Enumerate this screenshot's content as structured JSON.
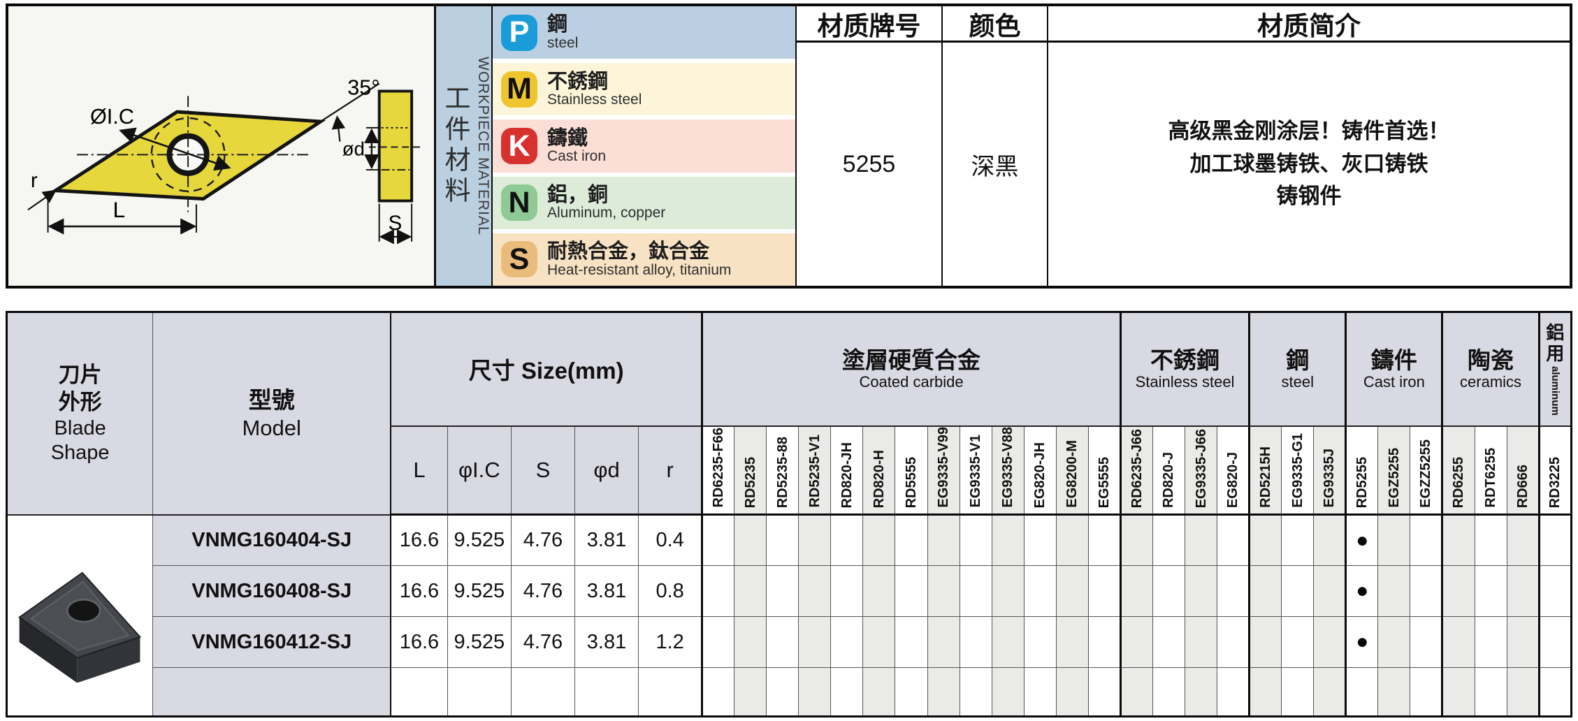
{
  "top": {
    "drawing": {
      "ic_label": "ØI.C",
      "angle_label": "35°",
      "radius_label": "r",
      "length_label": "L",
      "thickness_label": "S",
      "hole_label": "ød",
      "insert_color": "#e6d73c"
    },
    "workpiece": {
      "title_zh": "工件材料",
      "title_en": "WORKPIECE MATERIAL",
      "rows": [
        {
          "code": "P",
          "zh": "鋼",
          "en": "steel",
          "badge": "#1a9cd8",
          "letter": "#ffffff",
          "bg": "#bad0e2"
        },
        {
          "code": "M",
          "zh": "不銹鋼",
          "en": "Stainless steel",
          "badge": "#eec52e",
          "letter": "#111111",
          "bg": "#fcf5da"
        },
        {
          "code": "K",
          "zh": "鑄鐵",
          "en": "Cast iron",
          "badge": "#d7322e",
          "letter": "#ffffff",
          "bg": "#fbded6"
        },
        {
          "code": "N",
          "zh": "鋁，銅",
          "en": "Aluminum, copper",
          "badge": "#8fc993",
          "letter": "#111111",
          "bg": "#dcecd9"
        },
        {
          "code": "S",
          "zh": "耐熱合金，鈦合金",
          "en": "Heat-resistant alloy, titanium",
          "badge": "#eabc7c",
          "letter": "#111111",
          "bg": "#f7e3c3"
        }
      ]
    },
    "grade": {
      "header": "材质牌号",
      "value": "5255"
    },
    "color": {
      "header": "颜色",
      "value": "深黑"
    },
    "intro": {
      "header": "材质简介",
      "lines": [
        "高级黑金刚涂层！铸件首选！",
        "加工球墨铸铁、灰口铸铁",
        "铸钢件"
      ]
    }
  },
  "table": {
    "blade_shape": {
      "zh1": "刀片",
      "zh2": "外形",
      "en1": "Blade",
      "en2": "Shape"
    },
    "model_header": {
      "zh": "型號",
      "en": "Model"
    },
    "size_header": "尺寸 Size(mm)",
    "size_cols": [
      "L",
      "φI.C",
      "S",
      "φd",
      "r"
    ],
    "groups": [
      {
        "zh": "塗層硬質合金",
        "en": "Coated carbide",
        "cols": [
          "RD6235-F66",
          "RD5235",
          "RD5235-88",
          "RD5235-V1",
          "RD820-JH",
          "RD820-H",
          "RD5555",
          "EG9335-V99",
          "EG9335-V1",
          "EG9335-V88",
          "EG820-JH",
          "EG8200-M",
          "EG5555"
        ]
      },
      {
        "zh": "不銹鋼",
        "en": "Stainless steel",
        "cols": [
          "RD6235-J66",
          "RD820-J",
          "EG9335-J66",
          "EG820-J"
        ]
      },
      {
        "zh": "鋼",
        "en": "steel",
        "cols": [
          "RD5215H",
          "EG9335-G1",
          "EG9335J"
        ]
      },
      {
        "zh": "鑄件",
        "en": "Cast iron",
        "cols": [
          "RD5255",
          "EGZ5255",
          "EGZZ5255"
        ]
      },
      {
        "zh": "陶瓷",
        "en": "ceramics",
        "cols": [
          "RD6255",
          "RDT6255",
          "RD666"
        ]
      },
      {
        "zh": "鋁用",
        "en": "aluminum",
        "vertical": true,
        "cols": [
          "RD3225"
        ]
      }
    ],
    "rows": [
      {
        "model": "VNMG160404-SJ",
        "L": "16.6",
        "ic": "9.525",
        "s": "4.76",
        "d": "3.81",
        "r": "0.4",
        "marks": [
          "RD5255"
        ]
      },
      {
        "model": "VNMG160408-SJ",
        "L": "16.6",
        "ic": "9.525",
        "s": "4.76",
        "d": "3.81",
        "r": "0.8",
        "marks": [
          "RD5255"
        ]
      },
      {
        "model": "VNMG160412-SJ",
        "L": "16.6",
        "ic": "9.525",
        "s": "4.76",
        "d": "3.81",
        "r": "1.2",
        "marks": [
          "RD5255"
        ]
      },
      {
        "model": "",
        "L": "",
        "ic": "",
        "s": "",
        "d": "",
        "r": "",
        "marks": []
      }
    ],
    "mark_glyph": "●",
    "header_bg": "#d9d9e3",
    "stripe_bg": "#eaeae8"
  }
}
